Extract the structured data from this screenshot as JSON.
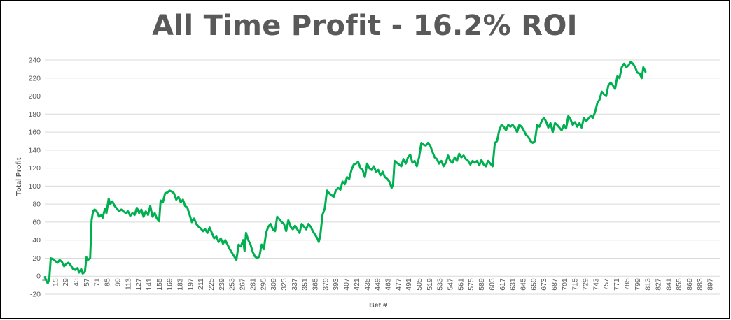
{
  "chart_data": {
    "type": "line",
    "title": "All Time Profit - 16.2% ROI",
    "xlabel": "Bet #",
    "ylabel": "Total Profit",
    "ylim": [
      -20,
      240
    ],
    "yticks": [
      -20,
      0,
      20,
      40,
      60,
      80,
      100,
      120,
      140,
      160,
      180,
      200,
      220,
      240
    ],
    "xlim": [
      1,
      910
    ],
    "xticks": [
      1,
      15,
      29,
      43,
      57,
      71,
      85,
      99,
      113,
      127,
      141,
      155,
      169,
      183,
      197,
      211,
      225,
      239,
      253,
      267,
      281,
      295,
      309,
      323,
      337,
      351,
      365,
      379,
      393,
      407,
      421,
      435,
      449,
      463,
      477,
      491,
      505,
      519,
      533,
      547,
      561,
      575,
      589,
      603,
      617,
      631,
      645,
      659,
      673,
      687,
      701,
      715,
      729,
      743,
      757,
      771,
      785,
      799,
      813,
      827,
      841,
      855,
      869,
      883,
      897
    ],
    "grid": true,
    "legend": "none",
    "line_color": "#00B050",
    "series": [
      {
        "name": "",
        "points": [
          [
            1,
            -1
          ],
          [
            3,
            -5
          ],
          [
            5,
            -8
          ],
          [
            7,
            -3
          ],
          [
            9,
            20
          ],
          [
            12,
            19
          ],
          [
            15,
            17
          ],
          [
            18,
            15
          ],
          [
            21,
            18
          ],
          [
            24,
            16
          ],
          [
            27,
            11
          ],
          [
            30,
            14
          ],
          [
            33,
            15
          ],
          [
            36,
            12
          ],
          [
            39,
            8
          ],
          [
            42,
            7
          ],
          [
            45,
            9
          ],
          [
            47,
            4
          ],
          [
            50,
            8
          ],
          [
            52,
            3
          ],
          [
            55,
            5
          ],
          [
            57,
            21
          ],
          [
            59,
            18
          ],
          [
            62,
            20
          ],
          [
            64,
            62
          ],
          [
            66,
            72
          ],
          [
            68,
            74
          ],
          [
            70,
            73
          ],
          [
            72,
            70
          ],
          [
            74,
            66
          ],
          [
            77,
            68
          ],
          [
            79,
            65
          ],
          [
            82,
            75
          ],
          [
            84,
            70
          ],
          [
            87,
            86
          ],
          [
            89,
            80
          ],
          [
            92,
            83
          ],
          [
            95,
            78
          ],
          [
            98,
            75
          ],
          [
            101,
            72
          ],
          [
            104,
            74
          ],
          [
            107,
            72
          ],
          [
            110,
            70
          ],
          [
            113,
            72
          ],
          [
            116,
            67
          ],
          [
            119,
            70
          ],
          [
            122,
            68
          ],
          [
            125,
            76
          ],
          [
            128,
            70
          ],
          [
            131,
            74
          ],
          [
            134,
            66
          ],
          [
            137,
            72
          ],
          [
            140,
            68
          ],
          [
            143,
            78
          ],
          [
            146,
            66
          ],
          [
            149,
            70
          ],
          [
            152,
            64
          ],
          [
            155,
            61
          ],
          [
            157,
            84
          ],
          [
            160,
            82
          ],
          [
            163,
            92
          ],
          [
            166,
            93
          ],
          [
            169,
            95
          ],
          [
            172,
            94
          ],
          [
            175,
            92
          ],
          [
            178,
            85
          ],
          [
            181,
            88
          ],
          [
            184,
            82
          ],
          [
            187,
            85
          ],
          [
            190,
            78
          ],
          [
            193,
            76
          ],
          [
            196,
            68
          ],
          [
            199,
            60
          ],
          [
            202,
            64
          ],
          [
            205,
            58
          ],
          [
            208,
            55
          ],
          [
            211,
            53
          ],
          [
            214,
            50
          ],
          [
            217,
            52
          ],
          [
            220,
            48
          ],
          [
            223,
            54
          ],
          [
            226,
            48
          ],
          [
            229,
            42
          ],
          [
            232,
            44
          ],
          [
            235,
            38
          ],
          [
            238,
            42
          ],
          [
            241,
            36
          ],
          [
            244,
            40
          ],
          [
            247,
            35
          ],
          [
            250,
            30
          ],
          [
            253,
            26
          ],
          [
            256,
            22
          ],
          [
            259,
            18
          ],
          [
            262,
            35
          ],
          [
            265,
            33
          ],
          [
            268,
            40
          ],
          [
            270,
            28
          ],
          [
            272,
            48
          ],
          [
            275,
            40
          ],
          [
            278,
            35
          ],
          [
            281,
            27
          ],
          [
            284,
            22
          ],
          [
            287,
            20
          ],
          [
            290,
            22
          ],
          [
            293,
            35
          ],
          [
            296,
            30
          ],
          [
            299,
            48
          ],
          [
            302,
            55
          ],
          [
            305,
            58
          ],
          [
            308,
            52
          ],
          [
            311,
            50
          ],
          [
            314,
            66
          ],
          [
            317,
            63
          ],
          [
            320,
            60
          ],
          [
            323,
            58
          ],
          [
            326,
            50
          ],
          [
            329,
            62
          ],
          [
            332,
            55
          ],
          [
            335,
            52
          ],
          [
            338,
            56
          ],
          [
            341,
            52
          ],
          [
            344,
            48
          ],
          [
            347,
            58
          ],
          [
            350,
            55
          ],
          [
            353,
            52
          ],
          [
            356,
            58
          ],
          [
            359,
            55
          ],
          [
            362,
            50
          ],
          [
            365,
            46
          ],
          [
            368,
            42
          ],
          [
            370,
            38
          ],
          [
            372,
            45
          ],
          [
            375,
            68
          ],
          [
            378,
            75
          ],
          [
            381,
            95
          ],
          [
            384,
            92
          ],
          [
            387,
            90
          ],
          [
            390,
            88
          ],
          [
            393,
            95
          ],
          [
            396,
            98
          ],
          [
            399,
            96
          ],
          [
            402,
            105
          ],
          [
            405,
            102
          ],
          [
            408,
            110
          ],
          [
            411,
            108
          ],
          [
            414,
            118
          ],
          [
            417,
            124
          ],
          [
            420,
            125
          ],
          [
            423,
            127
          ],
          [
            426,
            120
          ],
          [
            429,
            118
          ],
          [
            432,
            110
          ],
          [
            435,
            125
          ],
          [
            438,
            120
          ],
          [
            441,
            118
          ],
          [
            444,
            122
          ],
          [
            447,
            116
          ],
          [
            450,
            118
          ],
          [
            453,
            112
          ],
          [
            456,
            116
          ],
          [
            459,
            110
          ],
          [
            462,
            108
          ],
          [
            465,
            105
          ],
          [
            468,
            98
          ],
          [
            470,
            102
          ],
          [
            472,
            128
          ],
          [
            475,
            126
          ],
          [
            478,
            124
          ],
          [
            481,
            122
          ],
          [
            484,
            130
          ],
          [
            487,
            125
          ],
          [
            490,
            132
          ],
          [
            493,
            135
          ],
          [
            496,
            126
          ],
          [
            499,
            128
          ],
          [
            502,
            122
          ],
          [
            505,
            132
          ],
          [
            508,
            148
          ],
          [
            511,
            146
          ],
          [
            514,
            145
          ],
          [
            517,
            148
          ],
          [
            520,
            145
          ],
          [
            523,
            138
          ],
          [
            526,
            132
          ],
          [
            529,
            130
          ],
          [
            532,
            125
          ],
          [
            535,
            128
          ],
          [
            538,
            122
          ],
          [
            541,
            126
          ],
          [
            544,
            134
          ],
          [
            547,
            128
          ],
          [
            550,
            126
          ],
          [
            553,
            132
          ],
          [
            556,
            128
          ],
          [
            559,
            136
          ],
          [
            562,
            132
          ],
          [
            565,
            134
          ],
          [
            568,
            130
          ],
          [
            571,
            128
          ],
          [
            574,
            124
          ],
          [
            577,
            128
          ],
          [
            580,
            126
          ],
          [
            583,
            128
          ],
          [
            586,
            123
          ],
          [
            589,
            129
          ],
          [
            592,
            124
          ],
          [
            595,
            122
          ],
          [
            598,
            128
          ],
          [
            601,
            125
          ],
          [
            604,
            122
          ],
          [
            607,
            148
          ],
          [
            610,
            150
          ],
          [
            613,
            162
          ],
          [
            616,
            168
          ],
          [
            619,
            166
          ],
          [
            622,
            162
          ],
          [
            625,
            168
          ],
          [
            628,
            166
          ],
          [
            631,
            168
          ],
          [
            634,
            165
          ],
          [
            637,
            160
          ],
          [
            640,
            168
          ],
          [
            643,
            166
          ],
          [
            646,
            162
          ],
          [
            649,
            157
          ],
          [
            652,
            155
          ],
          [
            655,
            150
          ],
          [
            658,
            148
          ],
          [
            661,
            150
          ],
          [
            664,
            168
          ],
          [
            667,
            166
          ],
          [
            670,
            172
          ],
          [
            673,
            176
          ],
          [
            676,
            172
          ],
          [
            679,
            165
          ],
          [
            682,
            170
          ],
          [
            685,
            160
          ],
          [
            688,
            170
          ],
          [
            691,
            168
          ],
          [
            694,
            165
          ],
          [
            697,
            162
          ],
          [
            700,
            168
          ],
          [
            703,
            164
          ],
          [
            706,
            178
          ],
          [
            709,
            174
          ],
          [
            712,
            168
          ],
          [
            715,
            171
          ],
          [
            718,
            166
          ],
          [
            721,
            170
          ],
          [
            724,
            165
          ],
          [
            727,
            176
          ],
          [
            730,
            172
          ],
          [
            733,
            175
          ],
          [
            736,
            178
          ],
          [
            739,
            176
          ],
          [
            742,
            182
          ],
          [
            745,
            192
          ],
          [
            748,
            196
          ],
          [
            751,
            205
          ],
          [
            754,
            202
          ],
          [
            757,
            200
          ],
          [
            760,
            212
          ],
          [
            763,
            215
          ],
          [
            766,
            212
          ],
          [
            769,
            208
          ],
          [
            772,
            222
          ],
          [
            775,
            220
          ],
          [
            778,
            232
          ],
          [
            781,
            236
          ],
          [
            784,
            232
          ],
          [
            787,
            234
          ],
          [
            790,
            238
          ],
          [
            793,
            236
          ],
          [
            796,
            232
          ],
          [
            799,
            226
          ],
          [
            802,
            225
          ],
          [
            805,
            220
          ],
          [
            807,
            232
          ],
          [
            810,
            227
          ]
        ]
      }
    ]
  }
}
